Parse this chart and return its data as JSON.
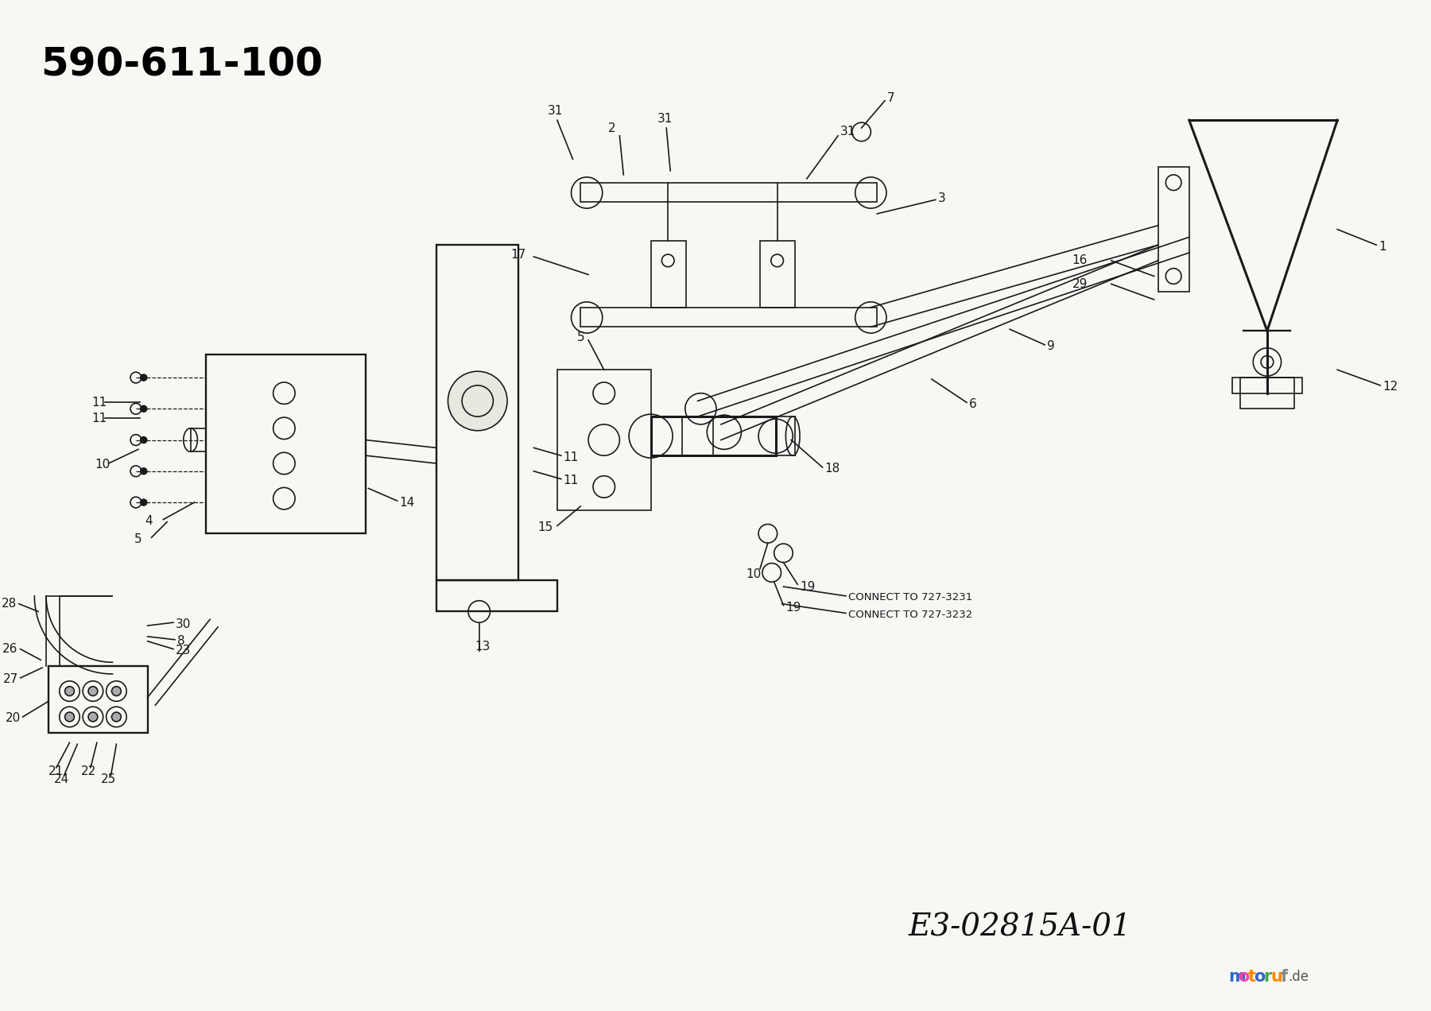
{
  "title": "590-611-100",
  "diagram_code": "E3-02815A-01",
  "background_color": "#f7f7f4",
  "title_fontsize": 36,
  "title_fontweight": "bold",
  "code_fontsize": 28,
  "watermark": "motoruf.de",
  "connect_text1": "CONNECT TO 727-3231",
  "connect_text2": "CONNECT TO 727-3232",
  "line_color": "#1a1a1a",
  "line_width": 1.2
}
